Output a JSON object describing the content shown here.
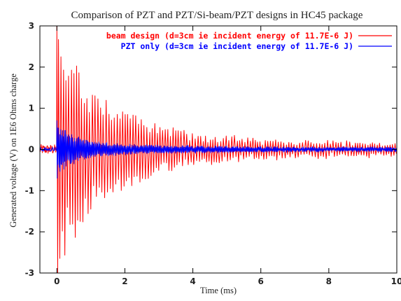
{
  "chart_data": {
    "type": "line",
    "title": "Comparison of PZT and PZT/Si-beam/PZT designs in HC45 package",
    "xlabel": "Time (ms)",
    "ylabel": "Generated voltage (V) on 1E6 Ohms charge",
    "xlim": [
      -0.5,
      10
    ],
    "ylim": [
      -3,
      3
    ],
    "x_ticks": [
      0,
      2,
      4,
      6,
      8,
      10
    ],
    "x_tick_labels": [
      "0",
      "2",
      "4",
      "6",
      "8",
      "10"
    ],
    "y_ticks": [
      3,
      2,
      1,
      0,
      -1,
      -2,
      -3
    ],
    "y_tick_labels": [
      "3",
      "2",
      "1",
      "0",
      "-1",
      "-2",
      "-3"
    ],
    "grid": false,
    "legend_position": "top-right",
    "series": [
      {
        "name": "beam design (d=3cm ie incident energy of 11.7E-6 J)",
        "color": "#ff0000",
        "baseline_noise_amplitude_V": 0.12,
        "impact_time_ms": 0.0,
        "peak_positive_V": 3.0,
        "peak_negative_V": -3.0,
        "oscillation_period_ms": 0.078,
        "envelope": {
          "t_ms": [
            0.0,
            0.5,
            1.0,
            2.0,
            3.0,
            4.0,
            6.0,
            8.0,
            10.0
          ],
          "amplitude_V": [
            3.0,
            2.2,
            1.6,
            1.0,
            0.6,
            0.4,
            0.25,
            0.2,
            0.15
          ]
        }
      },
      {
        "name": "PZT only (d=3cm ie incident energy of 11.7E-6 J)",
        "color": "#0000ff",
        "baseline_noise_amplitude_V": 0.05,
        "impact_time_ms": 0.0,
        "peak_positive_V": 0.7,
        "peak_negative_V": -0.7,
        "oscillation_period_ms": 0.03,
        "envelope": {
          "t_ms": [
            0.0,
            0.3,
            1.0,
            2.0,
            4.0,
            6.0,
            8.0,
            10.0
          ],
          "amplitude_V": [
            0.7,
            0.4,
            0.2,
            0.12,
            0.08,
            0.06,
            0.05,
            0.05
          ]
        }
      }
    ]
  }
}
